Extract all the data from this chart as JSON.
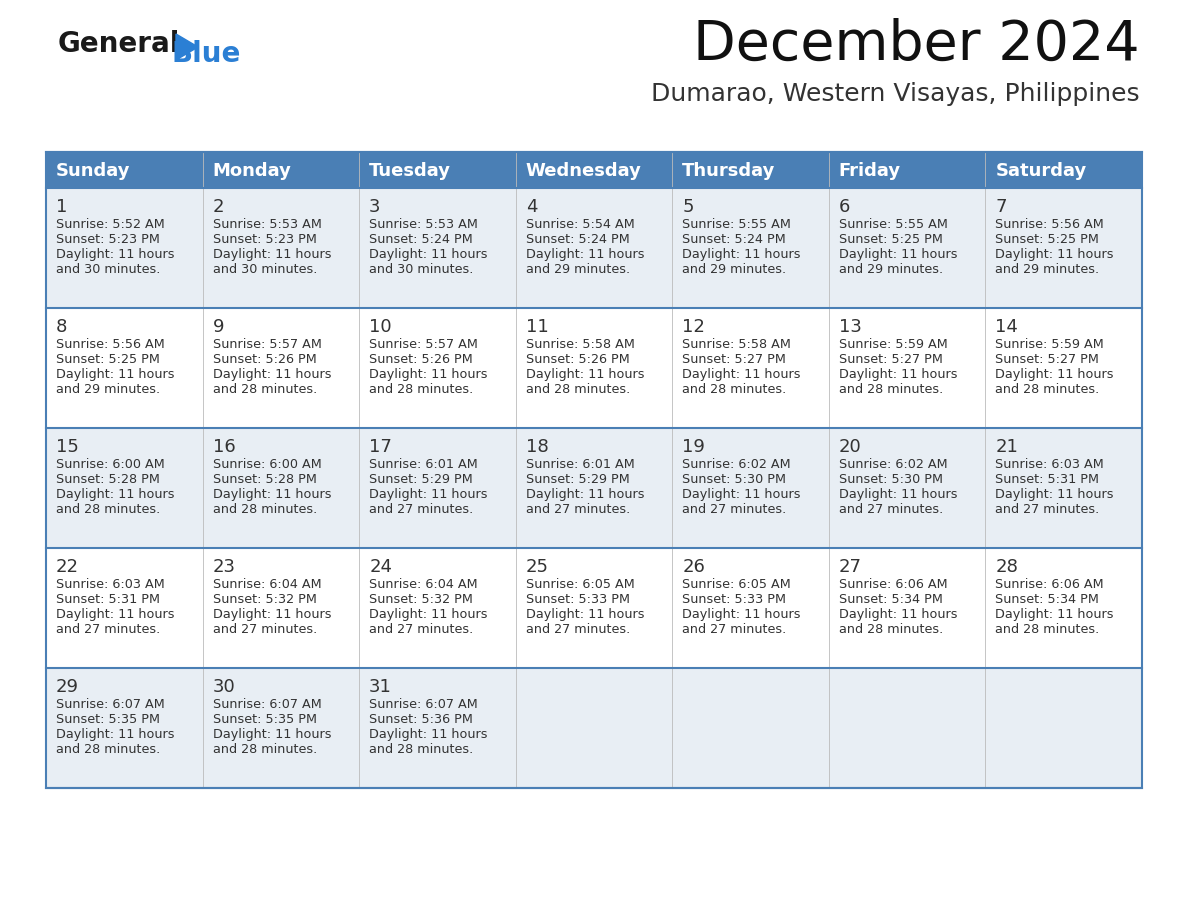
{
  "title": "December 2024",
  "subtitle": "Dumarao, Western Visayas, Philippines",
  "header_color": "#4a7fb5",
  "header_text_color": "#ffffff",
  "cell_bg_even": "#e8eef4",
  "cell_bg_odd": "#ffffff",
  "border_color": "#4a7fb5",
  "border_color_thin": "#4a7fb5",
  "text_color_day": "#333333",
  "text_color_info": "#333333",
  "days_of_week": [
    "Sunday",
    "Monday",
    "Tuesday",
    "Wednesday",
    "Thursday",
    "Friday",
    "Saturday"
  ],
  "calendar_data": [
    [
      {
        "day": 1,
        "sunrise": "5:52 AM",
        "sunset": "5:23 PM",
        "daylight_mins": "30"
      },
      {
        "day": 2,
        "sunrise": "5:53 AM",
        "sunset": "5:23 PM",
        "daylight_mins": "30"
      },
      {
        "day": 3,
        "sunrise": "5:53 AM",
        "sunset": "5:24 PM",
        "daylight_mins": "30"
      },
      {
        "day": 4,
        "sunrise": "5:54 AM",
        "sunset": "5:24 PM",
        "daylight_mins": "29"
      },
      {
        "day": 5,
        "sunrise": "5:55 AM",
        "sunset": "5:24 PM",
        "daylight_mins": "29"
      },
      {
        "day": 6,
        "sunrise": "5:55 AM",
        "sunset": "5:25 PM",
        "daylight_mins": "29"
      },
      {
        "day": 7,
        "sunrise": "5:56 AM",
        "sunset": "5:25 PM",
        "daylight_mins": "29"
      }
    ],
    [
      {
        "day": 8,
        "sunrise": "5:56 AM",
        "sunset": "5:25 PM",
        "daylight_mins": "29"
      },
      {
        "day": 9,
        "sunrise": "5:57 AM",
        "sunset": "5:26 PM",
        "daylight_mins": "28"
      },
      {
        "day": 10,
        "sunrise": "5:57 AM",
        "sunset": "5:26 PM",
        "daylight_mins": "28"
      },
      {
        "day": 11,
        "sunrise": "5:58 AM",
        "sunset": "5:26 PM",
        "daylight_mins": "28"
      },
      {
        "day": 12,
        "sunrise": "5:58 AM",
        "sunset": "5:27 PM",
        "daylight_mins": "28"
      },
      {
        "day": 13,
        "sunrise": "5:59 AM",
        "sunset": "5:27 PM",
        "daylight_mins": "28"
      },
      {
        "day": 14,
        "sunrise": "5:59 AM",
        "sunset": "5:27 PM",
        "daylight_mins": "28"
      }
    ],
    [
      {
        "day": 15,
        "sunrise": "6:00 AM",
        "sunset": "5:28 PM",
        "daylight_mins": "28"
      },
      {
        "day": 16,
        "sunrise": "6:00 AM",
        "sunset": "5:28 PM",
        "daylight_mins": "28"
      },
      {
        "day": 17,
        "sunrise": "6:01 AM",
        "sunset": "5:29 PM",
        "daylight_mins": "27"
      },
      {
        "day": 18,
        "sunrise": "6:01 AM",
        "sunset": "5:29 PM",
        "daylight_mins": "27"
      },
      {
        "day": 19,
        "sunrise": "6:02 AM",
        "sunset": "5:30 PM",
        "daylight_mins": "27"
      },
      {
        "day": 20,
        "sunrise": "6:02 AM",
        "sunset": "5:30 PM",
        "daylight_mins": "27"
      },
      {
        "day": 21,
        "sunrise": "6:03 AM",
        "sunset": "5:31 PM",
        "daylight_mins": "27"
      }
    ],
    [
      {
        "day": 22,
        "sunrise": "6:03 AM",
        "sunset": "5:31 PM",
        "daylight_mins": "27"
      },
      {
        "day": 23,
        "sunrise": "6:04 AM",
        "sunset": "5:32 PM",
        "daylight_mins": "27"
      },
      {
        "day": 24,
        "sunrise": "6:04 AM",
        "sunset": "5:32 PM",
        "daylight_mins": "27"
      },
      {
        "day": 25,
        "sunrise": "6:05 AM",
        "sunset": "5:33 PM",
        "daylight_mins": "27"
      },
      {
        "day": 26,
        "sunrise": "6:05 AM",
        "sunset": "5:33 PM",
        "daylight_mins": "27"
      },
      {
        "day": 27,
        "sunrise": "6:06 AM",
        "sunset": "5:34 PM",
        "daylight_mins": "28"
      },
      {
        "day": 28,
        "sunrise": "6:06 AM",
        "sunset": "5:34 PM",
        "daylight_mins": "28"
      }
    ],
    [
      {
        "day": 29,
        "sunrise": "6:07 AM",
        "sunset": "5:35 PM",
        "daylight_mins": "28"
      },
      {
        "day": 30,
        "sunrise": "6:07 AM",
        "sunset": "5:35 PM",
        "daylight_mins": "28"
      },
      {
        "day": 31,
        "sunrise": "6:07 AM",
        "sunset": "5:36 PM",
        "daylight_mins": "28"
      },
      null,
      null,
      null,
      null
    ]
  ],
  "logo_color_general": "#1a1a1a",
  "logo_color_blue": "#2b7fd4",
  "fig_width": 11.88,
  "fig_height": 9.18,
  "fig_dpi": 100
}
